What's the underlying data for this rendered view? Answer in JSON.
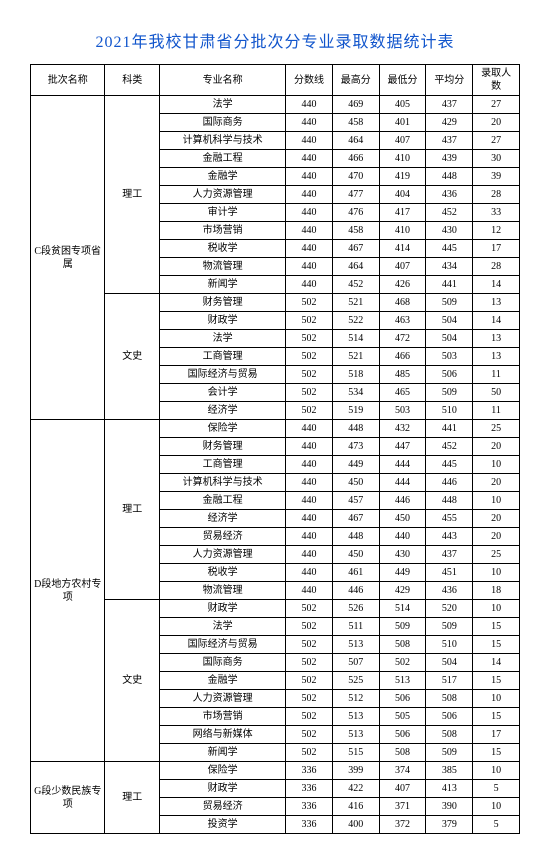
{
  "title": "2021年我校甘肃省分批次分专业录取数据统计表",
  "columns": [
    "批次名称",
    "科类",
    "专业名称",
    "分数线",
    "最高分",
    "最低分",
    "平均分",
    "录取人数"
  ],
  "batches": [
    {
      "name": "C段贫困专项省属",
      "groups": [
        {
          "category": "理工",
          "rows": [
            [
              "法学",
              440,
              469,
              405,
              437,
              27
            ],
            [
              "国际商务",
              440,
              458,
              401,
              429,
              20
            ],
            [
              "计算机科学与技术",
              440,
              464,
              407,
              437,
              27
            ],
            [
              "金融工程",
              440,
              466,
              410,
              439,
              30
            ],
            [
              "金融学",
              440,
              470,
              419,
              448,
              39
            ],
            [
              "人力资源管理",
              440,
              477,
              404,
              436,
              28
            ],
            [
              "审计学",
              440,
              476,
              417,
              452,
              33
            ],
            [
              "市场营销",
              440,
              458,
              410,
              430,
              12
            ],
            [
              "税收学",
              440,
              467,
              414,
              445,
              17
            ],
            [
              "物流管理",
              440,
              464,
              407,
              434,
              28
            ],
            [
              "新闻学",
              440,
              452,
              426,
              441,
              14
            ]
          ]
        },
        {
          "category": "文史",
          "rows": [
            [
              "财务管理",
              502,
              521,
              468,
              509,
              13
            ],
            [
              "财政学",
              502,
              522,
              463,
              504,
              14
            ],
            [
              "法学",
              502,
              514,
              472,
              504,
              13
            ],
            [
              "工商管理",
              502,
              521,
              466,
              503,
              13
            ],
            [
              "国际经济与贸易",
              502,
              518,
              485,
              506,
              11
            ],
            [
              "会计学",
              502,
              534,
              465,
              509,
              50
            ],
            [
              "经济学",
              502,
              519,
              503,
              510,
              11
            ]
          ]
        }
      ]
    },
    {
      "name": "D段地方农村专项",
      "groups": [
        {
          "category": "理工",
          "rows": [
            [
              "保险学",
              440,
              448,
              432,
              441,
              25
            ],
            [
              "财务管理",
              440,
              473,
              447,
              452,
              20
            ],
            [
              "工商管理",
              440,
              449,
              444,
              445,
              10
            ],
            [
              "计算机科学与技术",
              440,
              450,
              444,
              446,
              20
            ],
            [
              "金融工程",
              440,
              457,
              446,
              448,
              10
            ],
            [
              "经济学",
              440,
              467,
              450,
              455,
              20
            ],
            [
              "贸易经济",
              440,
              448,
              440,
              443,
              20
            ],
            [
              "人力资源管理",
              440,
              450,
              430,
              437,
              25
            ],
            [
              "税收学",
              440,
              461,
              449,
              451,
              10
            ],
            [
              "物流管理",
              440,
              446,
              429,
              436,
              18
            ]
          ]
        },
        {
          "category": "文史",
          "rows": [
            [
              "财政学",
              502,
              526,
              514,
              520,
              10
            ],
            [
              "法学",
              502,
              511,
              509,
              509,
              15
            ],
            [
              "国际经济与贸易",
              502,
              513,
              508,
              510,
              15
            ],
            [
              "国际商务",
              502,
              507,
              502,
              504,
              14
            ],
            [
              "金融学",
              502,
              525,
              513,
              517,
              15
            ],
            [
              "人力资源管理",
              502,
              512,
              506,
              508,
              10
            ],
            [
              "市场营销",
              502,
              513,
              505,
              506,
              15
            ],
            [
              "网络与新媒体",
              502,
              513,
              506,
              508,
              17
            ],
            [
              "新闻学",
              502,
              515,
              508,
              509,
              15
            ]
          ]
        }
      ]
    },
    {
      "name": "G段少数民族专项",
      "groups": [
        {
          "category": "理工",
          "rows": [
            [
              "保险学",
              336,
              399,
              374,
              385,
              10
            ],
            [
              "财政学",
              336,
              422,
              407,
              413,
              5
            ],
            [
              "贸易经济",
              336,
              416,
              371,
              390,
              10
            ],
            [
              "投资学",
              336,
              400,
              372,
              379,
              5
            ]
          ]
        }
      ]
    }
  ]
}
